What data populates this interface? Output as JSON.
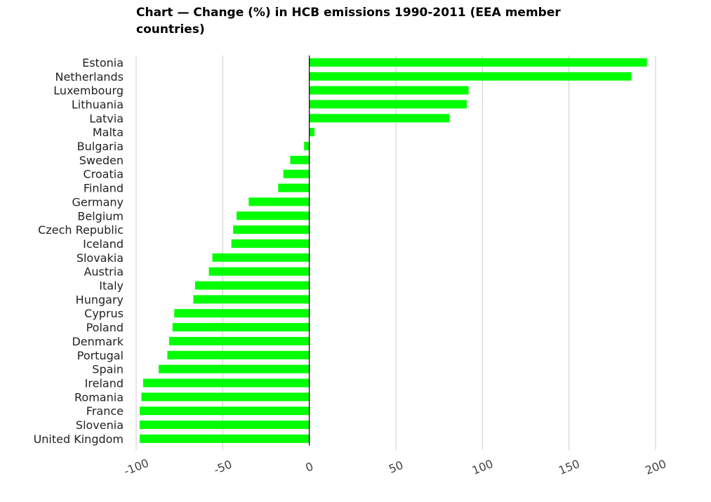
{
  "chart_data": {
    "type": "bar",
    "orientation": "horizontal",
    "title": "Chart — Change (%) in HCB emissions 1990-2011 (EEA member countries)",
    "xlabel": "",
    "ylabel": "",
    "xlim": [
      -100,
      200
    ],
    "x_ticks": [
      -100,
      -50,
      0,
      50,
      100,
      150,
      200
    ],
    "grid": true,
    "bar_color": "#00ff00",
    "categories": [
      "Estonia",
      "Netherlands",
      "Luxembourg",
      "Lithuania",
      "Latvia",
      "Malta",
      "Bulgaria",
      "Sweden",
      "Croatia",
      "Finland",
      "Germany",
      "Belgium",
      "Czech Republic",
      "Iceland",
      "Slovakia",
      "Austria",
      "Italy",
      "Hungary",
      "Cyprus",
      "Poland",
      "Denmark",
      "Portugal",
      "Spain",
      "Ireland",
      "Romania",
      "France",
      "Slovenia",
      "United Kingdom"
    ],
    "values": [
      195,
      186,
      92,
      91,
      81,
      3,
      -3,
      -11,
      -15,
      -18,
      -35,
      -42,
      -44,
      -45,
      -56,
      -58,
      -66,
      -67,
      -78,
      -79,
      -81,
      -82,
      -87,
      -96,
      -97,
      -98,
      -98,
      -98
    ]
  }
}
